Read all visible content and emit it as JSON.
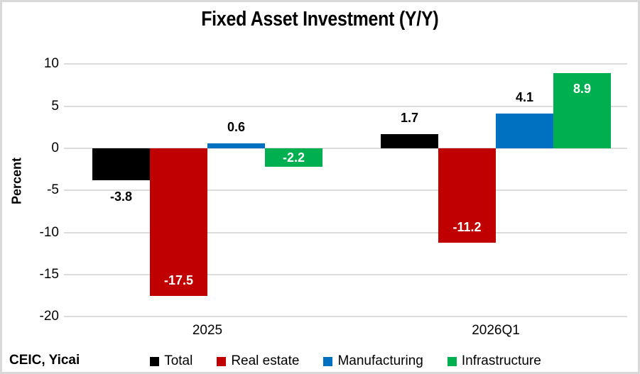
{
  "chart_data": {
    "type": "bar",
    "title": "Fixed Asset Investment (Y/Y)",
    "ylabel": "Percent",
    "xlabel": "",
    "categories": [
      "2025",
      "2026Q1"
    ],
    "series": [
      {
        "name": "Total",
        "color": "#000000",
        "values": [
          -3.8,
          1.7
        ],
        "labels": [
          "-3.8",
          "1.7"
        ],
        "label_placement": "outside",
        "label_color": "#000000"
      },
      {
        "name": "Real estate",
        "color": "#C00000",
        "values": [
          -17.5,
          -11.2
        ],
        "labels": [
          "-17.5",
          "-11.2"
        ],
        "label_placement": "inside-end",
        "label_color": "#FFFFFF"
      },
      {
        "name": "Manufacturing",
        "color": "#0070C0",
        "values": [
          0.6,
          4.1
        ],
        "labels": [
          "0.6",
          "4.1"
        ],
        "label_placement": "outside",
        "label_color": "#000000"
      },
      {
        "name": "Infrastructure",
        "color": "#00B050",
        "values": [
          -2.2,
          8.9
        ],
        "labels": [
          "-2.2",
          "8.9"
        ],
        "label_placement": "inside-end",
        "label_color": "#FFFFFF"
      }
    ],
    "y_axis": {
      "min": -20,
      "max": 10,
      "tick_step": 5,
      "ticks": [
        10,
        5,
        0,
        -5,
        -10,
        -15,
        -20
      ]
    },
    "grid": true,
    "grid_color": "#DCDCDC",
    "legend_position": "bottom",
    "source": "CEIC, Yicai"
  }
}
